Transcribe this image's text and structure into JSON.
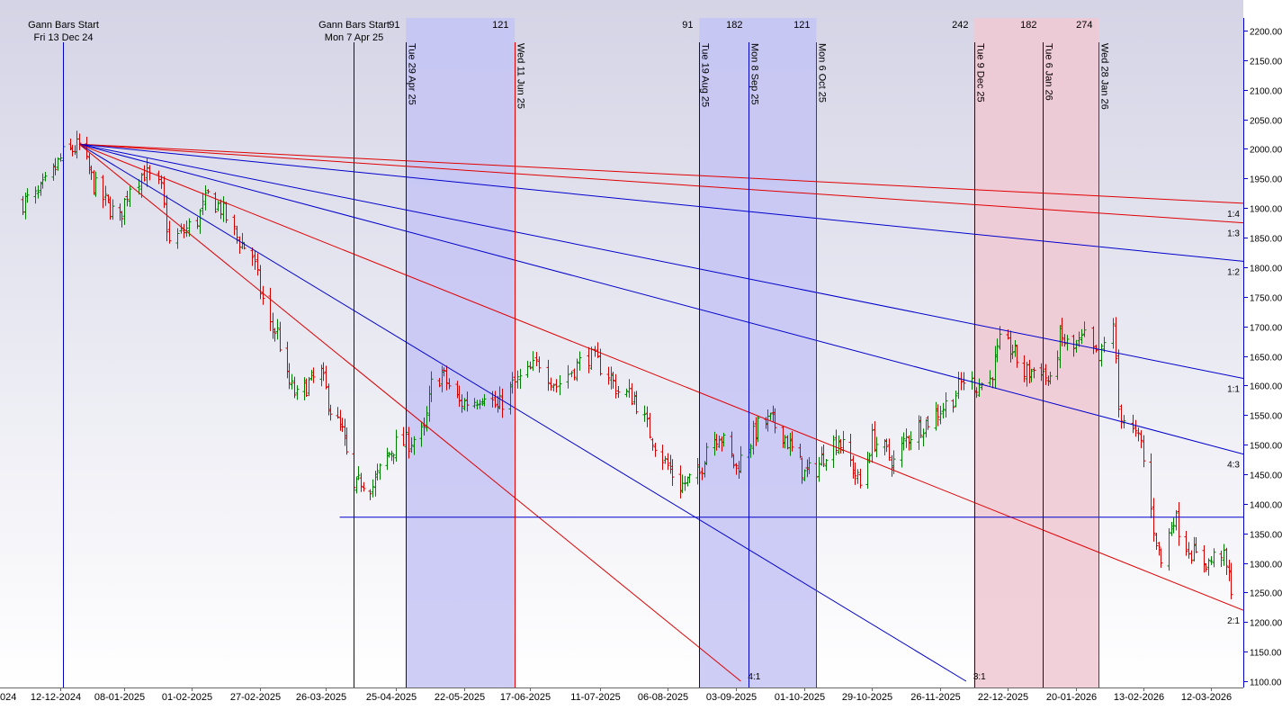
{
  "chart_data": {
    "type": "ohlc-bar",
    "x_tick_labels": [
      "12-12-2024",
      "08-01-2025",
      "01-02-2025",
      "27-02-2025",
      "26-03-2025",
      "25-04-2025",
      "22-05-2025",
      "17-06-2025",
      "11-07-2025",
      "06-08-2025",
      "03-09-2025",
      "01-10-2025",
      "29-10-2025",
      "26-11-2025",
      "22-12-2025",
      "20-01-2026",
      "13-02-2026",
      "12-03-2026"
    ],
    "x_tick_dates": [
      "2024-12-12",
      "2025-01-08",
      "2025-02-01",
      "2025-02-27",
      "2025-03-26",
      "2025-04-25",
      "2025-05-22",
      "2025-06-17",
      "2025-07-11",
      "2025-08-06",
      "2025-09-03",
      "2025-10-01",
      "2025-10-29",
      "2025-11-26",
      "2025-12-22",
      "2026-01-20",
      "2026-02-13",
      "2026-03-12"
    ],
    "left_edge_label": "024",
    "y_axis": {
      "min": 1100,
      "max": 2200,
      "step": 50,
      "side": "right",
      "decimals": 2
    },
    "grid": false,
    "background": {
      "top": "#d4d4e6",
      "bottom": "#ffffff"
    },
    "colors": {
      "up": "#008000",
      "down": "#d40000",
      "fan_red": "#e00000",
      "fan_blue": "#0000cc",
      "time_line_blue": "#0000cc",
      "time_line_red": "#e00000",
      "zone_blue": "#c4c4f4",
      "zone_red": "#f0c8d2",
      "axis": "#0000cc"
    },
    "gann_start_markers": [
      {
        "date": "2024-12-13",
        "label": "Gann Bars Start",
        "date_label": "Fri 13 Dec 24"
      },
      {
        "date": "2025-04-07",
        "label": "Gann Bars Start",
        "date_label": "Mon 7 Apr 25"
      }
    ],
    "time_lines": [
      {
        "date": "2025-04-29",
        "label": "Tue 29 Apr 25",
        "count": "91",
        "color": "blue"
      },
      {
        "date": "2025-06-11",
        "label": "Wed 11 Jun 25",
        "count": "121",
        "color": "red"
      },
      {
        "date": "2025-08-19",
        "label": "Tue 19 Aug 25",
        "count": "91",
        "color": "blue"
      },
      {
        "date": "2025-09-08",
        "label": "Mon 8 Sep 25",
        "count": "182",
        "color": "blue"
      },
      {
        "date": "2025-10-06",
        "label": "Mon 6 Oct 25",
        "count": "121",
        "color": "red"
      },
      {
        "date": "2025-12-09",
        "label": "Tue 9 Dec 25",
        "count": "242",
        "color": "blue"
      },
      {
        "date": "2026-01-06",
        "label": "Tue 6 Jan 26",
        "count": "182",
        "color": "blue"
      },
      {
        "date": "2026-01-28",
        "label": "Wed 28 Jan 26",
        "count": "274",
        "color": "red"
      }
    ],
    "zones": [
      {
        "from": "2025-04-29",
        "to": "2025-06-11",
        "color": "blue"
      },
      {
        "from": "2025-08-19",
        "to": "2025-10-06",
        "color": "blue"
      },
      {
        "from": "2025-12-09",
        "to": "2026-01-28",
        "color": "red"
      }
    ],
    "gann_fan": {
      "origin": {
        "date": "2024-12-20",
        "price": 2008
      },
      "lines": [
        {
          "label": "1:4",
          "color": "red",
          "end_price": 1908,
          "label_shown": true
        },
        {
          "label": "1:3",
          "color": "red",
          "end_price": 1875,
          "label_shown": true
        },
        {
          "label": "1:2",
          "color": "blue",
          "end_price": 1810,
          "label_shown": true
        },
        {
          "label": "1:1",
          "color": "blue",
          "end_price": 1612,
          "label_shown": true
        },
        {
          "label": "4:3",
          "color": "blue",
          "end_price": 1484,
          "label_shown": true
        },
        {
          "label": "2:1",
          "color": "red",
          "end_price": 1220,
          "label_shown": true
        },
        {
          "label": "3:1",
          "color": "blue",
          "end_date": "2025-12-06",
          "end_price": 1100,
          "label_shown": true
        },
        {
          "label": "4:1",
          "color": "red",
          "end_date": "2025-09-05",
          "end_price": 1100,
          "label_shown": true
        }
      ]
    },
    "horizontal_level": {
      "price": 1378,
      "from": "2025-04-01",
      "to": "2026-03-30",
      "color": "blue"
    },
    "price_anchors": [
      [
        "2024-11-27",
        1910
      ],
      [
        "2024-12-03",
        1920
      ],
      [
        "2024-12-09",
        1960
      ],
      [
        "2024-12-13",
        1990
      ],
      [
        "2024-12-20",
        2005
      ],
      [
        "2024-12-26",
        1940
      ],
      [
        "2024-12-31",
        1910
      ],
      [
        "2025-01-06",
        1880
      ],
      [
        "2025-01-10",
        1940
      ],
      [
        "2025-01-15",
        1960
      ],
      [
        "2025-01-21",
        1930
      ],
      [
        "2025-01-24",
        1840
      ],
      [
        "2025-01-29",
        1860
      ],
      [
        "2025-02-03",
        1880
      ],
      [
        "2025-02-07",
        1920
      ],
      [
        "2025-02-12",
        1900
      ],
      [
        "2025-02-18",
        1850
      ],
      [
        "2025-02-24",
        1820
      ],
      [
        "2025-02-27",
        1760
      ],
      [
        "2025-03-03",
        1700
      ],
      [
        "2025-03-06",
        1690
      ],
      [
        "2025-03-10",
        1610
      ],
      [
        "2025-03-14",
        1580
      ],
      [
        "2025-03-18",
        1600
      ],
      [
        "2025-03-24",
        1620
      ],
      [
        "2025-03-28",
        1560
      ],
      [
        "2025-04-02",
        1520
      ],
      [
        "2025-04-07",
        1420
      ],
      [
        "2025-04-10",
        1440
      ],
      [
        "2025-04-15",
        1430
      ],
      [
        "2025-04-21",
        1480
      ],
      [
        "2025-04-25",
        1500
      ],
      [
        "2025-04-30",
        1505
      ],
      [
        "2025-05-06",
        1520
      ],
      [
        "2025-05-09",
        1600
      ],
      [
        "2025-05-13",
        1620
      ],
      [
        "2025-05-20",
        1570
      ],
      [
        "2025-05-26",
        1575
      ],
      [
        "2025-05-30",
        1590
      ],
      [
        "2025-06-04",
        1560
      ],
      [
        "2025-06-10",
        1600
      ],
      [
        "2025-06-16",
        1620
      ],
      [
        "2025-06-20",
        1640
      ],
      [
        "2025-06-26",
        1600
      ],
      [
        "2025-07-02",
        1630
      ],
      [
        "2025-07-07",
        1650
      ],
      [
        "2025-07-14",
        1620
      ],
      [
        "2025-07-18",
        1590
      ],
      [
        "2025-07-24",
        1580
      ],
      [
        "2025-07-30",
        1520
      ],
      [
        "2025-08-05",
        1470
      ],
      [
        "2025-08-11",
        1430
      ],
      [
        "2025-08-15",
        1440
      ],
      [
        "2025-08-19",
        1450
      ],
      [
        "2025-08-22",
        1500
      ],
      [
        "2025-08-27",
        1520
      ],
      [
        "2025-09-03",
        1460
      ],
      [
        "2025-09-08",
        1500
      ],
      [
        "2025-09-12",
        1530
      ],
      [
        "2025-09-17",
        1540
      ],
      [
        "2025-09-22",
        1520
      ],
      [
        "2025-09-26",
        1490
      ],
      [
        "2025-10-01",
        1450
      ],
      [
        "2025-10-06",
        1460
      ],
      [
        "2025-10-10",
        1490
      ],
      [
        "2025-10-15",
        1510
      ],
      [
        "2025-10-20",
        1470
      ],
      [
        "2025-10-24",
        1430
      ],
      [
        "2025-10-29",
        1510
      ],
      [
        "2025-11-03",
        1490
      ],
      [
        "2025-11-07",
        1470
      ],
      [
        "2025-11-12",
        1510
      ],
      [
        "2025-11-17",
        1530
      ],
      [
        "2025-11-21",
        1540
      ],
      [
        "2025-11-26",
        1560
      ],
      [
        "2025-12-01",
        1580
      ],
      [
        "2025-12-05",
        1610
      ],
      [
        "2025-12-10",
        1600
      ],
      [
        "2025-12-15",
        1610
      ],
      [
        "2025-12-19",
        1670
      ],
      [
        "2025-12-24",
        1660
      ],
      [
        "2025-12-29",
        1620
      ],
      [
        "2026-01-05",
        1630
      ],
      [
        "2026-01-09",
        1600
      ],
      [
        "2026-01-13",
        1680
      ],
      [
        "2026-01-19",
        1660
      ],
      [
        "2026-01-23",
        1680
      ],
      [
        "2026-01-28",
        1640
      ],
      [
        "2026-02-02",
        1710
      ],
      [
        "2026-02-04",
        1560
      ],
      [
        "2026-02-09",
        1520
      ],
      [
        "2026-02-12",
        1500
      ],
      [
        "2026-02-17",
        1360
      ],
      [
        "2026-02-20",
        1300
      ],
      [
        "2026-02-25",
        1380
      ],
      [
        "2026-03-02",
        1330
      ],
      [
        "2026-03-06",
        1310
      ],
      [
        "2026-03-11",
        1300
      ],
      [
        "2026-03-16",
        1320
      ],
      [
        "2026-03-20",
        1260
      ]
    ]
  }
}
